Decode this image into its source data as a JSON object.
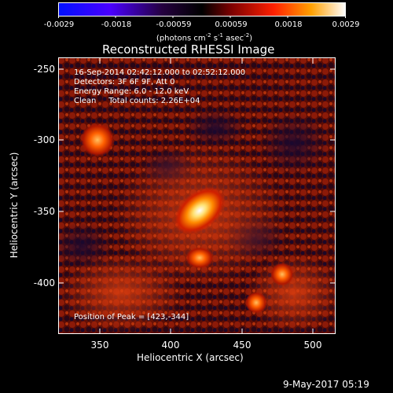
{
  "colorbar": {
    "tick_labels": [
      "-0.0029",
      "-0.0018",
      "-0.00059",
      "0.00059",
      "0.0018",
      "0.0029"
    ],
    "unit_main": "(photons cm",
    "unit_sup1": "-2",
    "unit_mid1": " s",
    "unit_sup2": "-1",
    "unit_mid2": " asec",
    "unit_sup3": "-2",
    "unit_end": ")",
    "range": [
      -0.0029,
      0.0029
    ]
  },
  "title": "Reconstructed RHESSI Image",
  "annotations": {
    "time": "16-Sep-2014 02:42:12.000 to 02:52:12.000",
    "detectors": "Detectors: 3F 6F 9F, Att 0",
    "energy": "Energy Range: 6.0 - 12.0 keV",
    "clean": "Clean     Total counts: 2.26E+04",
    "peak": "Position of Peak = [423,-344]"
  },
  "axes": {
    "xlabel": "Heliocentric X (arcsec)",
    "ylabel": "Heliocentric Y (arcsec)",
    "xticks": [
      "350",
      "400",
      "450",
      "500"
    ],
    "xtick_values": [
      350,
      400,
      450,
      500
    ],
    "yticks": [
      "-250",
      "-300",
      "-350",
      "-400"
    ],
    "ytick_values": [
      -250,
      -300,
      -350,
      -400
    ],
    "xlim": [
      320,
      512
    ],
    "ylim": [
      -432,
      -237
    ]
  },
  "footer": {
    "date": "9-May-2017 05:19"
  },
  "colors": {
    "colormap": [
      "#0000ff",
      "#5000ff",
      "#000000",
      "#8a0000",
      "#ff2000",
      "#ff9000",
      "#ffffff"
    ]
  }
}
